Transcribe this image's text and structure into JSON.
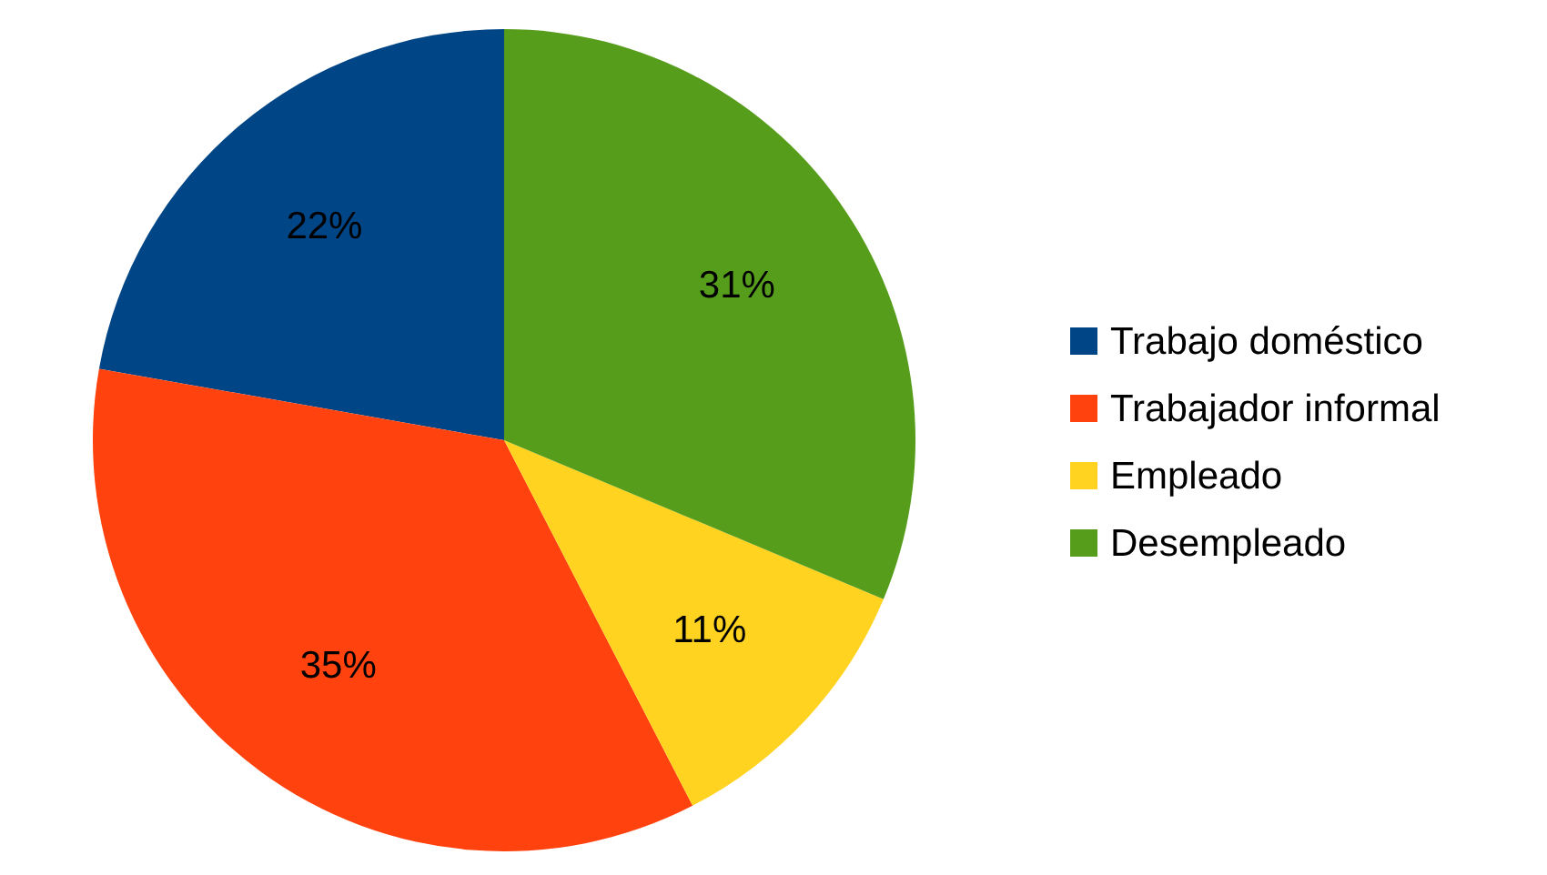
{
  "chart_data": {
    "type": "pie",
    "categories": [
      "Trabajo doméstico",
      "Trabajador informal",
      "Empleado",
      "Desempleado"
    ],
    "values": [
      22,
      35,
      11,
      31
    ],
    "colors": [
      "#004586",
      "#ff420e",
      "#ffd320",
      "#579d1c"
    ],
    "value_labels": [
      "22%",
      "35%",
      "11%",
      "31%"
    ],
    "legend": "right"
  }
}
